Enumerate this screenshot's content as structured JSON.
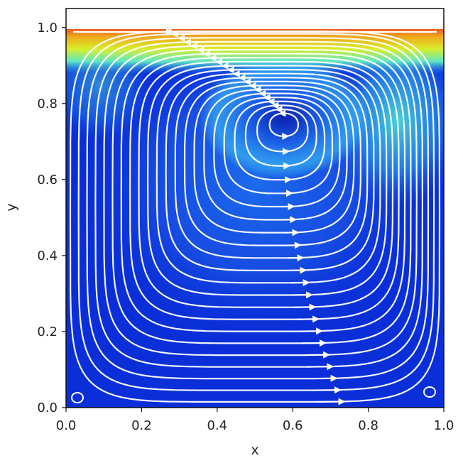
{
  "chart_data": {
    "type": "heatmap",
    "subtype": "streamplot",
    "title": "",
    "xlabel": "x",
    "ylabel": "y",
    "xlim": [
      0.0,
      1.0
    ],
    "ylim": [
      0.0,
      1.05
    ],
    "x_ticks": [
      0.0,
      0.2,
      0.4,
      0.6,
      0.8,
      1.0
    ],
    "x_tick_labels": [
      "0.0",
      "0.2",
      "0.4",
      "0.6",
      "0.8",
      "1.0"
    ],
    "y_ticks": [
      0.0,
      0.2,
      0.4,
      0.6,
      0.8,
      1.0
    ],
    "y_tick_labels": [
      "0.0",
      "0.2",
      "0.4",
      "0.6",
      "0.8",
      "1.0"
    ],
    "colormap": "jet",
    "background_color": "#0a2fd8",
    "streamline_color": "#ffffff",
    "lid_velocity_color": "#e8241a",
    "vortex_center": [
      0.58,
      0.76
    ],
    "grid": false,
    "legend": "none"
  }
}
